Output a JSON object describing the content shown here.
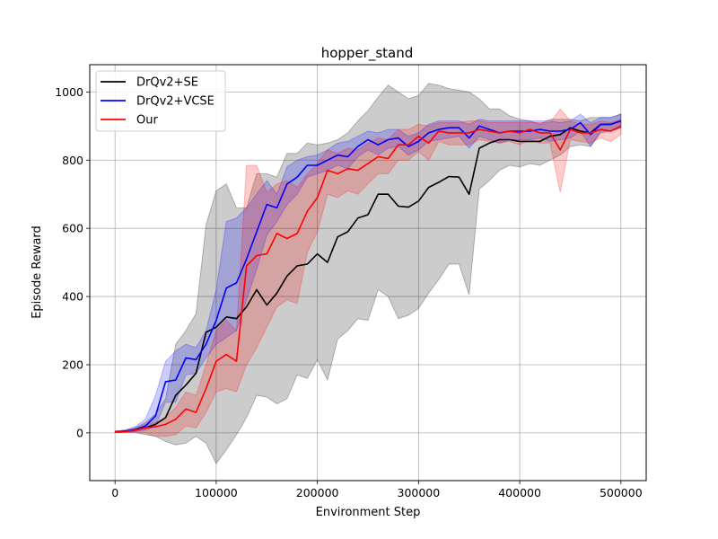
{
  "chart_data": {
    "type": "line",
    "title": "hopper_stand",
    "xlabel": "Environment Step",
    "ylabel": "Episode Reward",
    "xlim": [
      -25000,
      525000
    ],
    "ylim": [
      -140,
      1080
    ],
    "xticks": [
      0,
      100000,
      200000,
      300000,
      400000,
      500000
    ],
    "xtick_labels": [
      "0",
      "100000",
      "200000",
      "300000",
      "400000",
      "500000"
    ],
    "yticks": [
      0,
      200,
      400,
      600,
      800,
      1000
    ],
    "ytick_labels": [
      "0",
      "200",
      "400",
      "600",
      "800",
      "1000"
    ],
    "grid": true,
    "legend_position": "top-left",
    "x": [
      0,
      10000,
      20000,
      30000,
      40000,
      50000,
      60000,
      70000,
      80000,
      90000,
      100000,
      110000,
      120000,
      130000,
      140000,
      150000,
      160000,
      170000,
      180000,
      190000,
      200000,
      210000,
      220000,
      230000,
      240000,
      250000,
      260000,
      270000,
      280000,
      290000,
      300000,
      310000,
      320000,
      330000,
      340000,
      350000,
      360000,
      370000,
      380000,
      390000,
      400000,
      410000,
      420000,
      430000,
      440000,
      450000,
      460000,
      470000,
      480000,
      490000,
      500000
    ],
    "series": [
      {
        "name": "DrQv2+SE",
        "color": "#000000",
        "values": [
          3,
          5,
          8,
          15,
          25,
          45,
          110,
          140,
          175,
          295,
          310,
          340,
          335,
          370,
          420,
          375,
          410,
          460,
          490,
          495,
          525,
          500,
          575,
          590,
          630,
          640,
          700,
          700,
          665,
          662,
          680,
          720,
          735,
          752,
          750,
          700,
          835,
          850,
          860,
          860,
          855,
          855,
          855,
          870,
          875,
          895,
          885,
          880,
          905,
          905,
          915
        ],
        "upper": [
          5,
          8,
          15,
          30,
          55,
          100,
          260,
          300,
          350,
          610,
          710,
          730,
          660,
          660,
          760,
          760,
          750,
          820,
          820,
          850,
          845,
          850,
          860,
          880,
          915,
          945,
          985,
          1020,
          1000,
          980,
          990,
          1025,
          1020,
          1010,
          1005,
          1000,
          980,
          950,
          950,
          930,
          920,
          915,
          905,
          920,
          920,
          920,
          915,
          925,
          925,
          925,
          935
        ],
        "lower": [
          1,
          2,
          1,
          -5,
          -10,
          -25,
          -35,
          -30,
          -10,
          -30,
          -90,
          -50,
          -5,
          45,
          110,
          105,
          85,
          100,
          170,
          160,
          215,
          155,
          275,
          300,
          335,
          330,
          420,
          400,
          335,
          345,
          365,
          410,
          450,
          495,
          495,
          405,
          715,
          740,
          770,
          785,
          780,
          790,
          785,
          800,
          815,
          840,
          845,
          840,
          880,
          885,
          895
        ]
      },
      {
        "name": "DrQv2+VCSE",
        "color": "#0000ff",
        "values": [
          3,
          5,
          10,
          20,
          50,
          150,
          155,
          220,
          215,
          260,
          330,
          425,
          440,
          510,
          590,
          670,
          660,
          730,
          750,
          785,
          785,
          800,
          815,
          810,
          840,
          860,
          845,
          860,
          865,
          840,
          855,
          880,
          890,
          895,
          895,
          865,
          900,
          890,
          880,
          885,
          885,
          885,
          890,
          885,
          885,
          890,
          910,
          875,
          905,
          905,
          915
        ],
        "upper": [
          5,
          8,
          18,
          40,
          110,
          210,
          240,
          260,
          250,
          300,
          420,
          620,
          630,
          660,
          700,
          740,
          700,
          780,
          800,
          810,
          815,
          830,
          850,
          855,
          870,
          885,
          880,
          890,
          890,
          870,
          880,
          905,
          915,
          915,
          915,
          905,
          920,
          915,
          915,
          915,
          915,
          915,
          915,
          915,
          910,
          915,
          935,
          910,
          925,
          925,
          935
        ],
        "lower": [
          1,
          2,
          4,
          8,
          20,
          90,
          90,
          170,
          175,
          220,
          260,
          280,
          300,
          390,
          480,
          580,
          620,
          670,
          700,
          750,
          760,
          770,
          785,
          775,
          810,
          830,
          815,
          835,
          840,
          815,
          830,
          855,
          860,
          865,
          870,
          835,
          870,
          860,
          850,
          860,
          860,
          860,
          865,
          855,
          860,
          865,
          885,
          840,
          885,
          885,
          895
        ]
      },
      {
        "name": "Our",
        "color": "#ff0000",
        "values": [
          3,
          4,
          8,
          15,
          18,
          25,
          40,
          70,
          60,
          130,
          210,
          230,
          210,
          490,
          520,
          525,
          585,
          570,
          585,
          650,
          690,
          770,
          760,
          775,
          770,
          790,
          810,
          805,
          845,
          845,
          870,
          850,
          885,
          880,
          880,
          880,
          890,
          885,
          880,
          885,
          880,
          890,
          880,
          880,
          830,
          890,
          880,
          880,
          890,
          885,
          900
        ],
        "upper": [
          5,
          6,
          12,
          25,
          30,
          45,
          75,
          120,
          110,
          200,
          300,
          330,
          300,
          785,
          785,
          705,
          730,
          740,
          720,
          760,
          790,
          830,
          820,
          835,
          830,
          850,
          865,
          860,
          890,
          890,
          905,
          900,
          910,
          910,
          910,
          915,
          915,
          910,
          910,
          910,
          910,
          910,
          910,
          910,
          950,
          915,
          905,
          905,
          915,
          910,
          920
        ],
        "lower": [
          1,
          2,
          3,
          0,
          -10,
          -10,
          -5,
          20,
          15,
          60,
          120,
          130,
          120,
          200,
          250,
          310,
          370,
          390,
          380,
          530,
          590,
          700,
          690,
          710,
          700,
          730,
          760,
          760,
          800,
          800,
          825,
          800,
          855,
          845,
          845,
          845,
          860,
          855,
          850,
          855,
          845,
          860,
          850,
          850,
          705,
          860,
          855,
          850,
          865,
          855,
          875
        ]
      }
    ]
  }
}
